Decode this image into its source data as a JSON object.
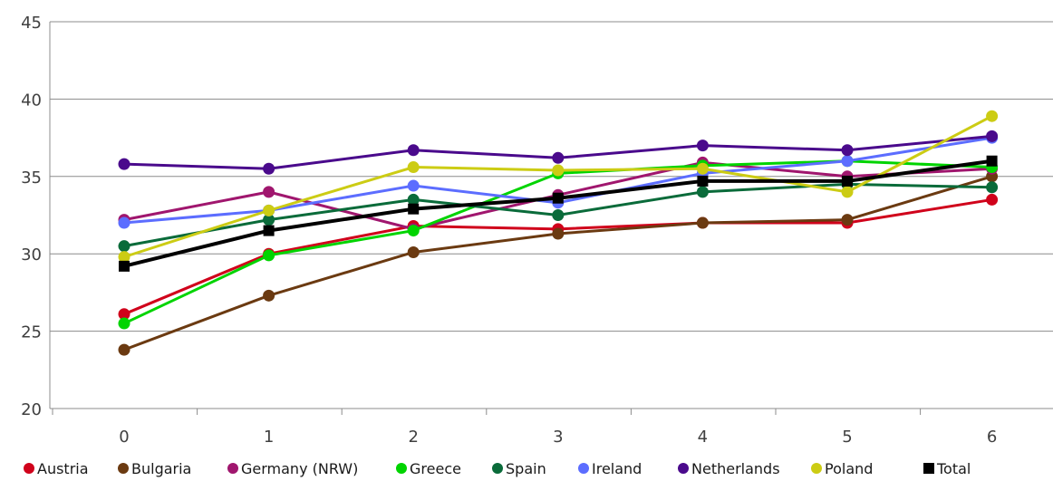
{
  "chart_data": {
    "type": "line",
    "title": "",
    "xlabel": "",
    "ylabel": "",
    "x": [
      "0",
      "1",
      "2",
      "3",
      "4",
      "5",
      "6"
    ],
    "ylim": [
      20,
      45
    ],
    "yticks": [
      20,
      25,
      30,
      35,
      40,
      45
    ],
    "grid": "horizontal",
    "legend_position": "bottom",
    "series": [
      {
        "name": "Austria",
        "color": "#d0021b",
        "marker": "circle",
        "values": [
          26.1,
          30.0,
          31.8,
          31.6,
          32.0,
          32.0,
          33.5
        ]
      },
      {
        "name": "Bulgaria",
        "color": "#6b3a11",
        "marker": "circle",
        "values": [
          23.8,
          27.3,
          30.1,
          31.3,
          32.0,
          32.2,
          35.0
        ]
      },
      {
        "name": "Germany (NRW)",
        "color": "#a0166e",
        "marker": "circle",
        "values": [
          32.2,
          34.0,
          31.6,
          33.8,
          35.9,
          35.0,
          35.5
        ]
      },
      {
        "name": "Greece",
        "color": "#00d400",
        "marker": "circle",
        "values": [
          25.5,
          29.9,
          31.5,
          35.2,
          35.7,
          36.0,
          35.6
        ]
      },
      {
        "name": "Spain",
        "color": "#0a6b3a",
        "marker": "circle",
        "values": [
          30.5,
          32.2,
          33.5,
          32.5,
          34.0,
          34.5,
          34.3
        ]
      },
      {
        "name": "Ireland",
        "color": "#5c6dff",
        "marker": "circle",
        "values": [
          32.0,
          32.8,
          34.4,
          33.3,
          35.2,
          36.0,
          37.5
        ]
      },
      {
        "name": "Netherlands",
        "color": "#4a0a8c",
        "marker": "circle",
        "values": [
          35.8,
          35.5,
          36.7,
          36.2,
          37.0,
          36.7,
          37.6
        ]
      },
      {
        "name": "Poland",
        "color": "#cccc14",
        "marker": "circle",
        "values": [
          29.8,
          32.8,
          35.6,
          35.4,
          35.5,
          34.0,
          38.9
        ]
      },
      {
        "name": "Total",
        "color": "#000000",
        "marker": "square",
        "values": [
          29.2,
          31.5,
          32.9,
          33.6,
          34.7,
          34.7,
          36.0
        ]
      }
    ]
  }
}
